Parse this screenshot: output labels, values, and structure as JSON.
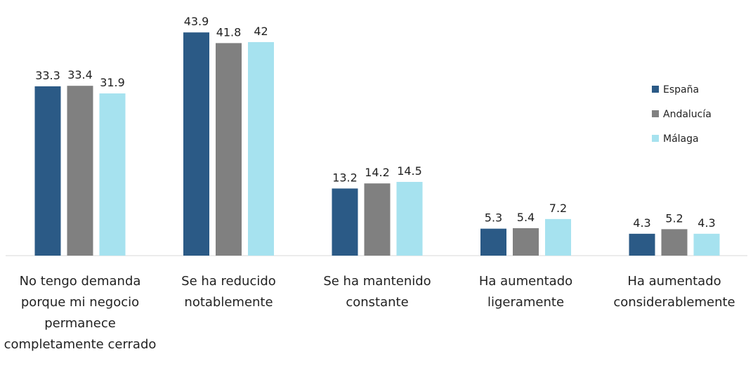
{
  "chart_data": {
    "type": "bar",
    "categories": [
      "No tengo demanda porque mi negocio permanece completamente cerrado",
      "Se ha reducido notablemente",
      "Se ha mantenido constante",
      "Ha aumentado ligeramente",
      "Ha aumentado considerablemente"
    ],
    "series": [
      {
        "name": "España",
        "color": "#2b5a86",
        "values": [
          33.3,
          43.9,
          13.2,
          5.3,
          4.3
        ]
      },
      {
        "name": "Andalucía",
        "color": "#808080",
        "values": [
          33.4,
          41.8,
          14.2,
          5.4,
          5.2
        ]
      },
      {
        "name": "Málaga",
        "color": "#a6e2ef",
        "values": [
          31.9,
          42,
          14.5,
          7.2,
          4.3
        ]
      }
    ],
    "legend": "right"
  }
}
